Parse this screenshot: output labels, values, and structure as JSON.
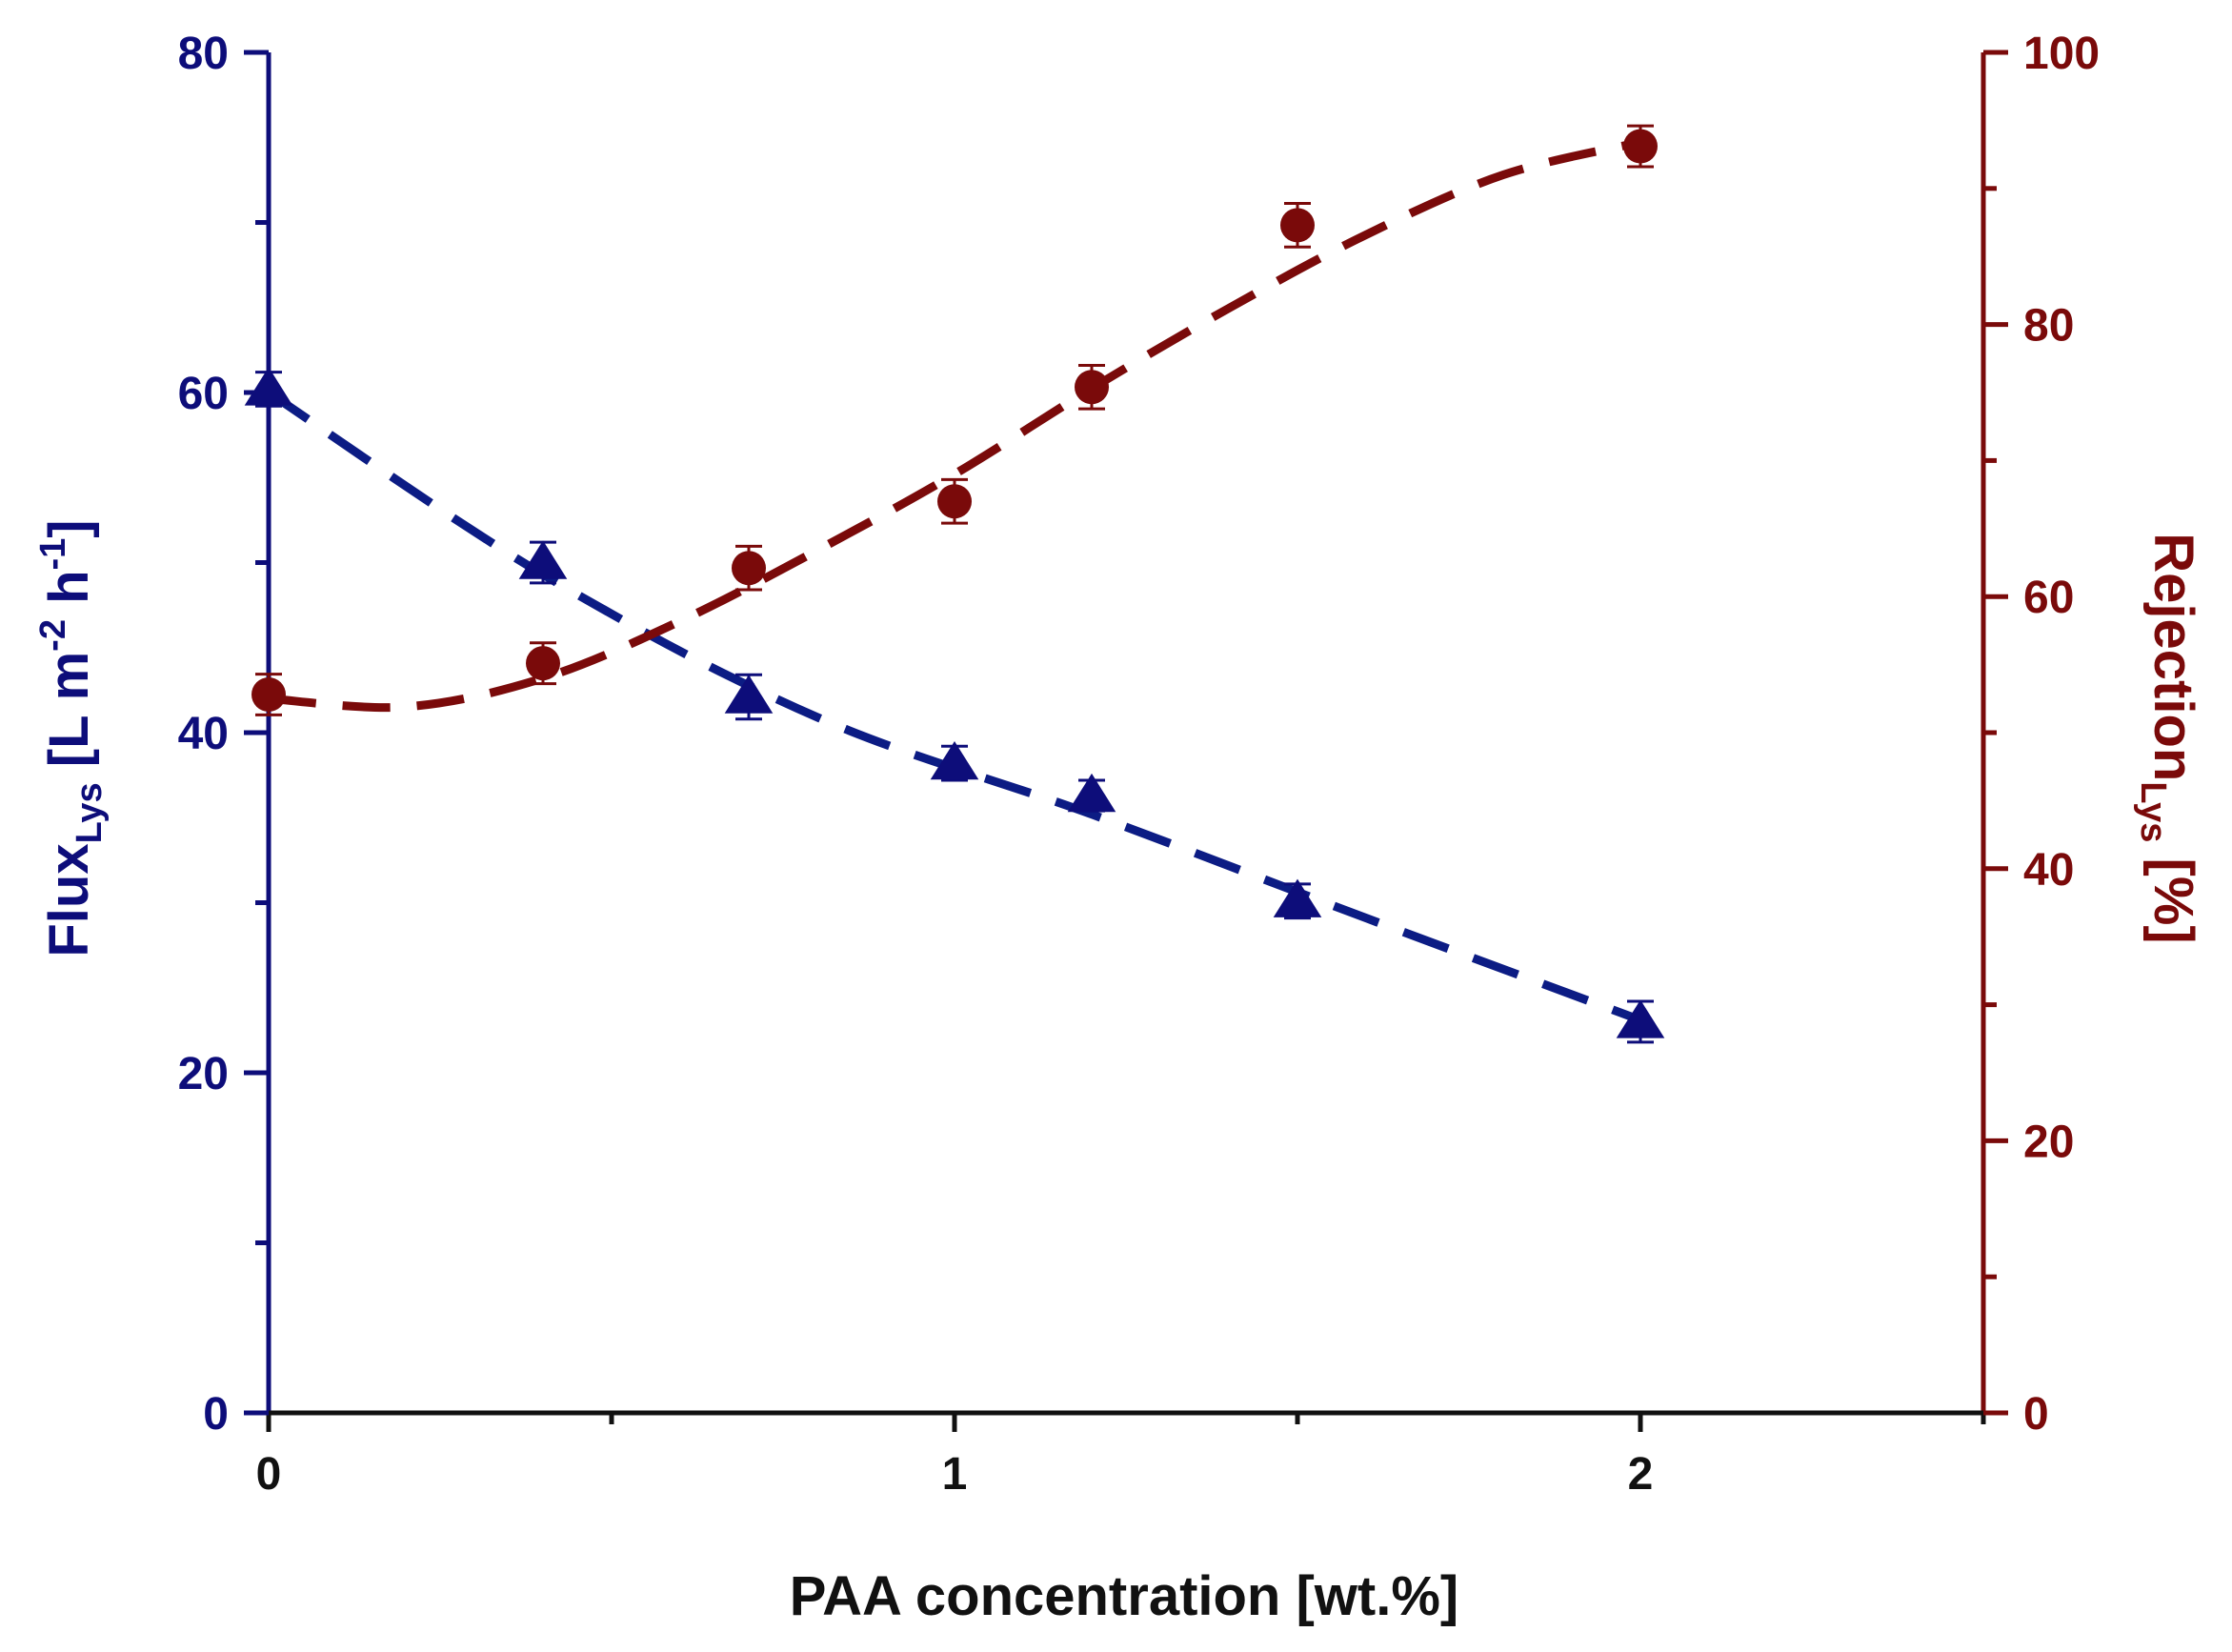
{
  "chart_data": {
    "type": "line",
    "x_axis": {
      "label": "PAA concentration [wt.%]",
      "range": [
        0,
        2.5
      ],
      "ticks": [
        0,
        1,
        2
      ],
      "minor_ticks": [
        0.5,
        1.5,
        2.5
      ],
      "tick_labels": [
        "0",
        "1",
        "2"
      ]
    },
    "y_axis_left": {
      "label_parts": [
        {
          "key": "flux",
          "text": "Flux",
          "role": "main"
        },
        {
          "key": "lys",
          "text": "Lys",
          "role": "sub"
        },
        {
          "key": "bl",
          "text": " [L m",
          "role": "main"
        },
        {
          "key": "m2",
          "text": "-2",
          "role": "sup"
        },
        {
          "key": "h",
          "text": " h",
          "role": "main"
        },
        {
          "key": "h1",
          "text": "-1",
          "role": "sup"
        },
        {
          "key": "br",
          "text": "]",
          "role": "main"
        }
      ],
      "range": [
        0,
        80
      ],
      "ticks": [
        0,
        20,
        40,
        60,
        80
      ],
      "minor_ticks": [
        10,
        30,
        50,
        70
      ],
      "tick_labels": [
        "0",
        "20",
        "40",
        "60",
        "80"
      ],
      "color": "#0d0d7a"
    },
    "y_axis_right": {
      "label_parts": [
        {
          "key": "rej",
          "text": "Rejection",
          "role": "main"
        },
        {
          "key": "lys",
          "text": "Lys",
          "role": "sub"
        },
        {
          "key": "pct",
          "text": " [%]",
          "role": "main"
        }
      ],
      "range": [
        0,
        100
      ],
      "ticks": [
        0,
        20,
        40,
        60,
        80,
        100
      ],
      "minor_ticks": [
        10,
        30,
        50,
        70,
        90
      ],
      "tick_labels": [
        "0",
        "20",
        "40",
        "60",
        "80",
        "100"
      ],
      "color": "#7a0a0a"
    },
    "series": [
      {
        "name": "Flux",
        "axis": "left",
        "marker": "triangle",
        "color": "#0d0d7a",
        "fit_color": "#0c1c84",
        "x": [
          0,
          0.4,
          0.7,
          1.0,
          1.2,
          1.5,
          2.0
        ],
        "y": [
          60.2,
          50.0,
          42.1,
          38.2,
          36.3,
          30.1,
          23.0
        ],
        "error": [
          1.0,
          1.2,
          1.3,
          1.0,
          0.9,
          1.0,
          1.2
        ],
        "fit_x": [
          0,
          0.4,
          0.8,
          1.2,
          1.6,
          2.0
        ],
        "fit_y": [
          60.0,
          49.3,
          40.9,
          35.2,
          29.1,
          23.1
        ]
      },
      {
        "name": "Rejection",
        "axis": "right",
        "marker": "circle",
        "color": "#7a0a0a",
        "fit_color": "#7a0a0a",
        "x": [
          0,
          0.4,
          0.7,
          1.0,
          1.2,
          1.5,
          2.0
        ],
        "y": [
          52.8,
          55.1,
          62.1,
          67.0,
          75.4,
          87.3,
          93.1
        ],
        "error": [
          1.5,
          1.5,
          1.6,
          1.6,
          1.6,
          1.6,
          1.5
        ],
        "fit_x": [
          0,
          0.2,
          0.4,
          0.6,
          0.8,
          1.0,
          1.2,
          1.4,
          1.6,
          1.8,
          2.0
        ],
        "fit_y": [
          52.5,
          51.9,
          54.0,
          58.2,
          63.4,
          69.0,
          75.3,
          81.2,
          86.6,
          91.0,
          93.4
        ]
      }
    ]
  }
}
